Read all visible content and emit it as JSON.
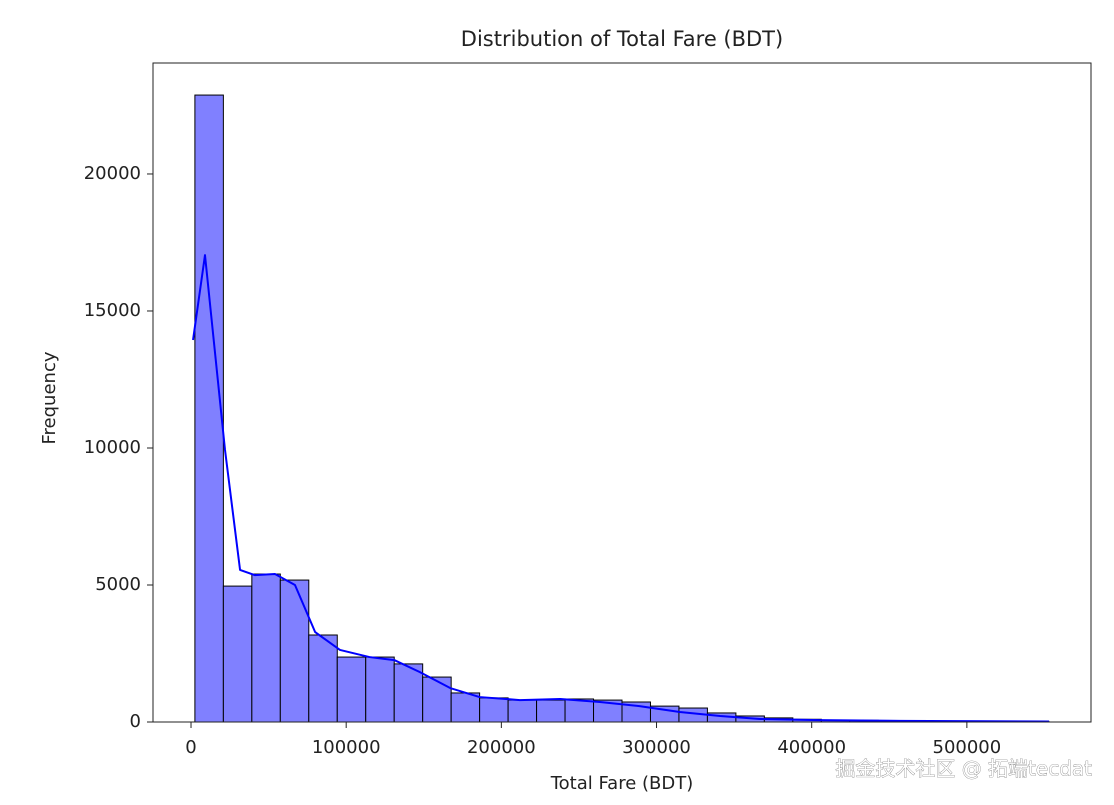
{
  "chart_data": {
    "type": "histogram",
    "title": "Distribution of Total Fare (BDT)",
    "xlabel": "Total Fare (BDT)",
    "ylabel": "Frequency",
    "watermark": "掘金技术社区 @ 拓端tecdat",
    "color": "#8080ff",
    "edgecolor": "#000000",
    "bins": [
      2500,
      20850,
      39200,
      57550,
      75900,
      94250,
      112600,
      130950,
      149300,
      167650,
      186000,
      204350,
      222700,
      241050,
      259400,
      277750,
      296100,
      314450,
      332800,
      351150,
      369500,
      387850,
      406200,
      424550,
      442900,
      461250,
      479600,
      497950,
      516300,
      534650,
      553000
    ],
    "values": [
      22880,
      4960,
      5400,
      5180,
      3175,
      2370,
      2370,
      2120,
      1640,
      1060,
      880,
      800,
      800,
      840,
      800,
      730,
      580,
      510,
      330,
      220,
      150,
      100,
      70,
      60,
      40,
      30,
      20,
      20,
      15,
      10
    ],
    "kde": {
      "color": "#0000ff",
      "x": [
        1300,
        9000,
        21900,
        31600,
        41200,
        54100,
        67000,
        80000,
        96000,
        115000,
        131000,
        147500,
        167000,
        186000,
        212000,
        238000,
        263500,
        289000,
        315000,
        341000,
        366600,
        405000,
        457000,
        553000
      ],
      "values": [
        13940,
        17040,
        9930,
        5550,
        5360,
        5400,
        5000,
        3280,
        2630,
        2370,
        2260,
        1820,
        1240,
        910,
        800,
        840,
        730,
        580,
        365,
        220,
        110,
        70,
        40,
        20
      ]
    },
    "xlim": [
      -24500,
      580000
    ],
    "ylim": [
      0,
      24050
    ],
    "xticks": [
      0,
      100000,
      200000,
      300000,
      400000,
      500000
    ],
    "yticks": [
      0,
      5000,
      10000,
      15000,
      20000
    ]
  }
}
